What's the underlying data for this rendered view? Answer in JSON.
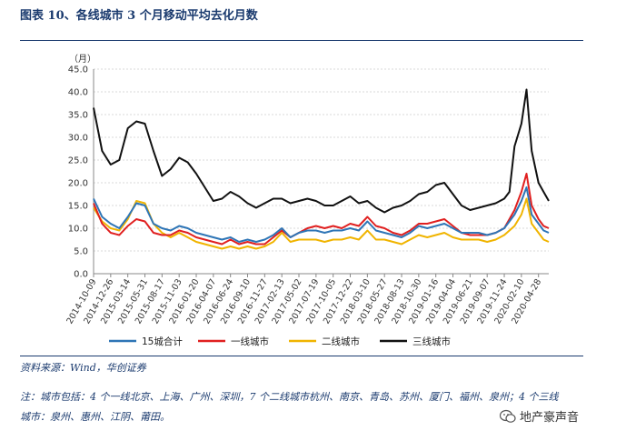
{
  "title": "图表 10、各线城市 3 个月移动平均去化月数",
  "source": "资料来源：Wind，华创证券",
  "note": "注：城市包括：4 个一线北京、上海、广州、深圳，7 个二线城市杭州、南京、青岛、苏州、厦门、福州、泉州；4 个三线城市：泉州、惠州、江阴、莆田。",
  "watermark": "地产豪声音",
  "watermark_icon": "wechat-icon",
  "chart_data": {
    "type": "line",
    "unit_label": "（月）",
    "ylim": [
      0,
      45
    ],
    "yticks": [
      "0.0",
      "5.0",
      "10.0",
      "15.0",
      "20.0",
      "25.0",
      "30.0",
      "35.0",
      "40.0",
      "45.0"
    ],
    "grid": true,
    "legend_position": "bottom",
    "xtick_labels": [
      "2014-10-09",
      "2014-12-26",
      "2015-03-14",
      "2015-05-31",
      "2015-08-17",
      "2015-11-03",
      "2016-01-20",
      "2016-04-07",
      "2016-06-24",
      "2016-09-10",
      "2016-11-27",
      "2017-02-13",
      "2017-05-02",
      "2017-07-19",
      "2017-10-05",
      "2017-12-22",
      "2018-03-10",
      "2018-05-27",
      "2018-08-13",
      "2018-10-30",
      "2019-01-16",
      "2019-04-04",
      "2019-06-21",
      "2019-09-07",
      "2019-11-24",
      "2020-02-10",
      "2020-04-28"
    ],
    "x": [
      0,
      0.5,
      1,
      1.5,
      2,
      2.5,
      3,
      3.5,
      4,
      4.5,
      5,
      5.5,
      6,
      6.5,
      7,
      7.5,
      8,
      8.5,
      9,
      9.5,
      10,
      10.5,
      11,
      11.5,
      12,
      12.5,
      13,
      13.5,
      14,
      14.5,
      15,
      15.5,
      16,
      16.5,
      17,
      17.5,
      18,
      18.5,
      19,
      19.5,
      20,
      20.5,
      21,
      21.5,
      22,
      22.5,
      23,
      23.5,
      24,
      24.3,
      24.6,
      25,
      25.3,
      25.6,
      26,
      26.3,
      26.6
    ],
    "series": [
      {
        "name": "15城合计",
        "color": "#2e75b6",
        "values": [
          16.5,
          12.5,
          11,
          10,
          12.5,
          15.5,
          15,
          11,
          10,
          9.5,
          10.5,
          10,
          9,
          8.5,
          8,
          7.5,
          8,
          7,
          7.5,
          7,
          7.5,
          8.5,
          10,
          8,
          9,
          9.5,
          9.5,
          9,
          9.5,
          9.5,
          10,
          9.5,
          11.5,
          9.5,
          9,
          8.5,
          8,
          9,
          10.5,
          10,
          10.5,
          11,
          10,
          9,
          9,
          9,
          8.5,
          9,
          10,
          11.5,
          13,
          16,
          19,
          13,
          11,
          9.5,
          9
        ]
      },
      {
        "name": "一线城市",
        "color": "#e02020",
        "values": [
          15.5,
          11,
          9,
          8.5,
          10.5,
          12,
          11.5,
          9,
          8.5,
          8.5,
          9.5,
          9,
          8,
          7.5,
          7,
          6.5,
          7.5,
          6.5,
          7,
          6.5,
          6.5,
          8,
          9.5,
          8,
          9,
          10,
          10.5,
          10,
          10.5,
          10,
          11,
          10.5,
          12.5,
          10.5,
          10,
          9,
          8.5,
          9.5,
          11,
          11,
          11.5,
          12,
          10.5,
          9,
          8.5,
          8.5,
          8.5,
          9,
          10,
          12,
          14,
          18,
          22,
          15,
          12,
          10.5,
          10
        ]
      },
      {
        "name": "二线城市",
        "color": "#f0b400",
        "values": [
          14.5,
          11.5,
          10,
          9.5,
          12,
          16,
          15.5,
          11,
          9,
          8,
          9,
          8,
          7,
          6.5,
          6,
          5.5,
          6,
          5.5,
          6,
          5.5,
          6,
          7,
          9,
          7,
          7.5,
          7.5,
          7.5,
          7,
          7.5,
          7.5,
          8,
          7.5,
          9.5,
          7.5,
          7.5,
          7,
          6.5,
          7.5,
          8.5,
          8,
          8.5,
          9,
          8,
          7.5,
          7.5,
          7.5,
          7,
          7.5,
          8.5,
          9.5,
          10.5,
          13,
          16.5,
          11,
          9,
          7.5,
          7
        ]
      },
      {
        "name": "三线城市",
        "color": "#111111",
        "values": [
          36.5,
          27,
          24,
          25,
          32,
          33.5,
          33,
          27,
          21.5,
          23,
          25.5,
          24.5,
          22,
          19,
          16,
          16.5,
          18,
          17,
          15.5,
          14.5,
          15.5,
          16.5,
          16.5,
          15.5,
          16,
          16.5,
          16,
          15,
          15,
          16,
          17,
          15.5,
          16,
          14.5,
          13.5,
          14.5,
          15,
          16,
          17.5,
          18,
          19.5,
          20,
          17.5,
          15,
          14,
          14.5,
          15,
          15.5,
          16.5,
          18,
          28,
          33,
          40.5,
          27,
          20,
          18,
          16
        ]
      }
    ]
  }
}
